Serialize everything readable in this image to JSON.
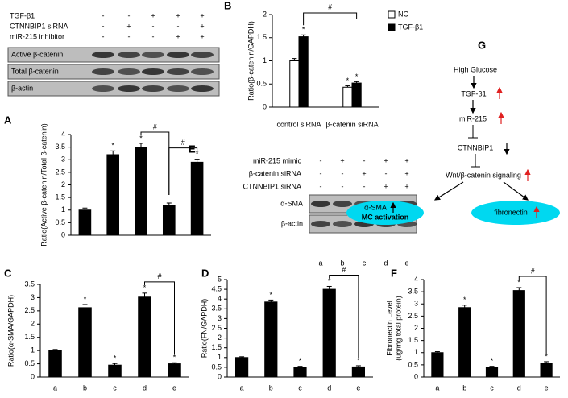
{
  "chart_data": [
    {
      "type": "bar",
      "panel": "A",
      "ylabel": "Ratio(Active β-catenin/Total β-catenin)",
      "categories": [
        null,
        null,
        null,
        null,
        null
      ],
      "values": [
        1.0,
        3.2,
        3.5,
        1.2,
        2.9
      ],
      "errors": [
        0.08,
        0.15,
        0.15,
        0.08,
        0.12
      ],
      "color": "#000000",
      "markers": [
        null,
        "*",
        "*",
        null,
        "*"
      ],
      "brackets": [
        {
          "text": "#",
          "from": 2,
          "to": 3
        },
        {
          "text": "#",
          "from": 3,
          "to": 4
        }
      ],
      "ylim": [
        0,
        4
      ],
      "yticks": [
        0,
        0.5,
        1,
        1.5,
        2,
        2.5,
        3,
        3.5,
        4
      ]
    },
    {
      "type": "grouped-bar",
      "panel": "B",
      "ylabel": "Ratio(β-catenin/GAPDH)",
      "categories": [
        "control siRNA",
        "β-catenin siRNA"
      ],
      "series": [
        {
          "name": "NC",
          "color": "#ffffff",
          "values": [
            1.0,
            0.43
          ],
          "errors": [
            0.05,
            0.03
          ],
          "markers": [
            null,
            "*"
          ]
        },
        {
          "name": "TGF-β1",
          "color": "#000000",
          "values": [
            1.52,
            0.52
          ],
          "errors": [
            0.04,
            0.03
          ],
          "markers": [
            "*",
            "*"
          ]
        }
      ],
      "brackets": [
        {
          "text": "#",
          "series": 1,
          "from": 0,
          "to": 1
        }
      ],
      "legend": "top-right",
      "ylim": [
        0,
        2
      ],
      "yticks": [
        0,
        0.5,
        1,
        1.5,
        2
      ]
    },
    {
      "type": "bar",
      "panel": "C",
      "ylabel": "Ratio(α-SMA/GAPDH)",
      "categories": [
        "a",
        "b",
        "c",
        "d",
        "e"
      ],
      "values": [
        1.0,
        2.62,
        0.45,
        3.02,
        0.5
      ],
      "errors": [
        0.04,
        0.12,
        0.06,
        0.15,
        0.04
      ],
      "color": "#000000",
      "markers": [
        null,
        "*",
        "*",
        "*",
        "*"
      ],
      "brackets": [
        {
          "text": "#",
          "from": 3,
          "to": 4
        }
      ],
      "ylim": [
        0,
        3.5
      ],
      "yticks": [
        0,
        0.5,
        1,
        1.5,
        2,
        2.5,
        3,
        3.5
      ]
    },
    {
      "type": "bar",
      "panel": "D",
      "ylabel": "Ratio(FN/GAPDH)",
      "categories": [
        "a",
        "b",
        "c",
        "d",
        "e"
      ],
      "values": [
        1.0,
        3.85,
        0.48,
        4.5,
        0.52
      ],
      "errors": [
        0.04,
        0.1,
        0.07,
        0.15,
        0.06
      ],
      "color": "#000000",
      "markers": [
        null,
        "*",
        "*",
        "*",
        "*"
      ],
      "brackets": [
        {
          "text": "#",
          "from": 3,
          "to": 4
        }
      ],
      "ylim": [
        0,
        5
      ],
      "yticks": [
        0,
        0.5,
        1,
        1.5,
        2,
        2.5,
        3,
        3.5,
        4,
        4.5,
        5
      ]
    },
    {
      "type": "bar",
      "panel": "F",
      "ylabel": [
        "Fibronectin Level",
        "(ug/mg total protein)"
      ],
      "categories": [
        "a",
        "b",
        "c",
        "d",
        "e"
      ],
      "values": [
        1.0,
        2.85,
        0.38,
        3.55,
        0.55
      ],
      "errors": [
        0.04,
        0.1,
        0.06,
        0.12,
        0.08
      ],
      "color": "#000000",
      "markers": [
        null,
        "*",
        "*",
        "*",
        "*"
      ],
      "brackets": [
        {
          "text": "#",
          "from": 3,
          "to": 4
        }
      ],
      "ylim": [
        0,
        4
      ],
      "yticks": [
        0,
        0.5,
        1,
        1.5,
        2,
        2.5,
        3,
        3.5,
        4
      ]
    }
  ],
  "blot_a": {
    "conditions": [
      {
        "label": "TGF-β1",
        "marks": [
          "-",
          "-",
          "+",
          "+",
          "+"
        ]
      },
      {
        "label": "CTNNBIP1 siRNA",
        "marks": [
          "-",
          "+",
          "-",
          "-",
          "+"
        ]
      },
      {
        "label": "miR-215 inhibitor",
        "marks": [
          "-",
          "-",
          "-",
          "+",
          "+"
        ]
      }
    ],
    "bands": [
      "Active β-catenin",
      "Total  β-catenin",
      "β-actin"
    ]
  },
  "blot_e": {
    "panel": "E",
    "conditions": [
      {
        "label": "miR-215 mimic",
        "marks": [
          "-",
          "+",
          "-",
          "+",
          "+"
        ]
      },
      {
        "label": "β-catenin siRNA",
        "marks": [
          "-",
          "-",
          "+",
          "-",
          "+"
        ]
      },
      {
        "label": "CTNNBIP1 siRNA",
        "marks": [
          "-",
          "-",
          "-",
          "+",
          "+"
        ]
      }
    ],
    "bands": [
      "α-SMA",
      "β-actin"
    ],
    "lanes": [
      "a",
      "b",
      "c",
      "d",
      "e"
    ]
  },
  "diagram": {
    "panel": "G",
    "nodes": [
      "High  Glucose",
      "TGF-β1",
      "miR-215",
      "CTNNBIP1",
      "Wnt/β-catenin signaling"
    ],
    "outcomes": [
      {
        "label": "α-SMA",
        "sublabel": "MC activation"
      },
      {
        "label": "fibronectin"
      }
    ]
  }
}
